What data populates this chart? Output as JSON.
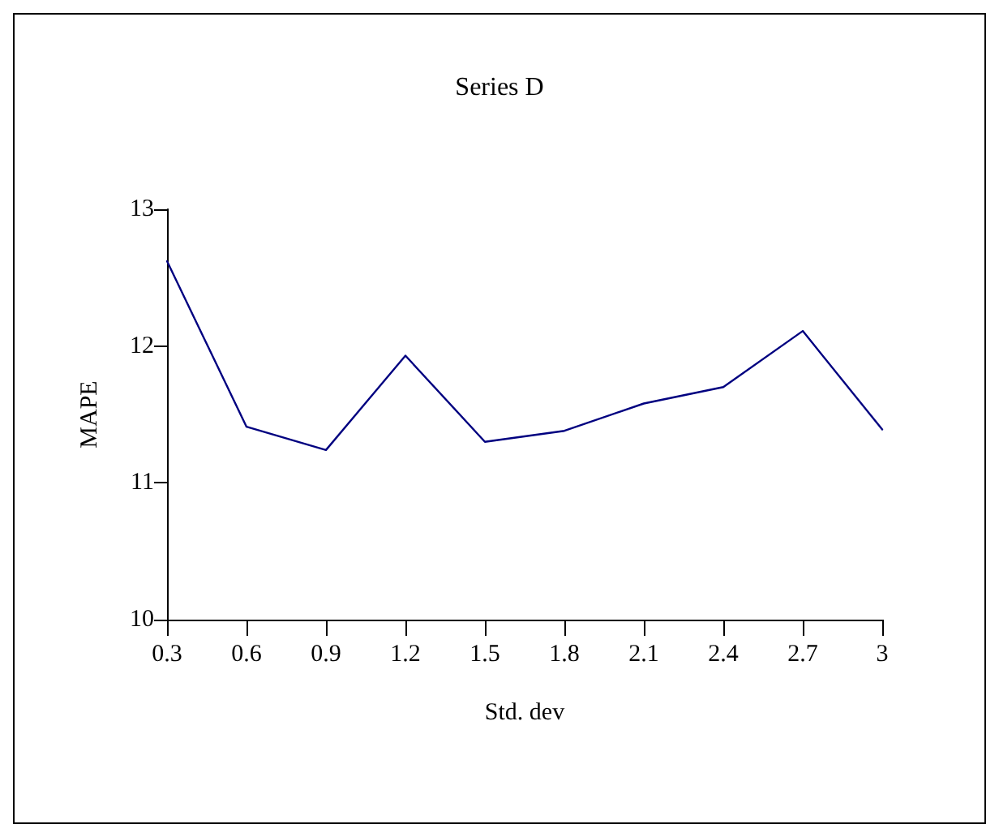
{
  "chart_data": {
    "type": "line",
    "title": "Series D",
    "xlabel": "Std. dev",
    "ylabel": "MAPE",
    "categories": [
      "0.3",
      "0.6",
      "0.9",
      "1.2",
      "1.5",
      "1.8",
      "2.1",
      "2.4",
      "2.7",
      "3"
    ],
    "series": [
      {
        "color": "#000080",
        "values": [
          12.62,
          11.41,
          11.24,
          11.93,
          11.3,
          11.38,
          11.58,
          11.7,
          12.11,
          11.39
        ]
      }
    ],
    "ylim": [
      10,
      13
    ],
    "yticks": [
      10,
      11,
      12,
      13
    ],
    "grid": false,
    "marker": "none",
    "line_style": "solid"
  }
}
